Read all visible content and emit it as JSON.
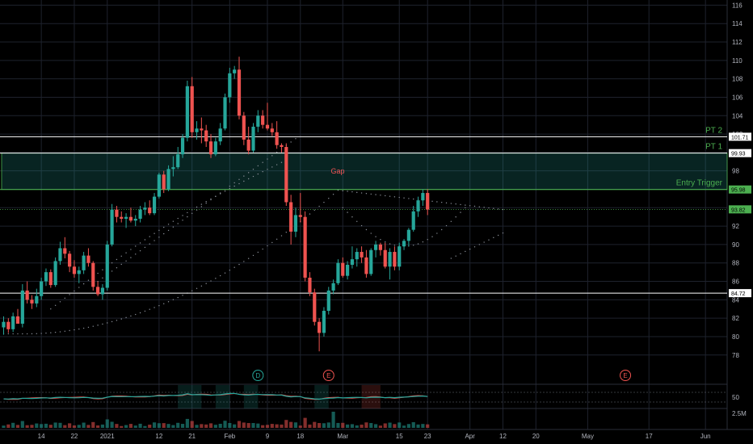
{
  "chart_data": {
    "type": "candlestick",
    "y_ticks": [
      116,
      114,
      112,
      110,
      108,
      106,
      104,
      102,
      100,
      98,
      96,
      94,
      92,
      90,
      88,
      86,
      84,
      82,
      80,
      78
    ],
    "ylim": [
      76.4,
      116.3
    ],
    "x_ticks": [
      {
        "label": "14",
        "i": 8
      },
      {
        "label": "22",
        "i": 15
      },
      {
        "label": "2021",
        "i": 22
      },
      {
        "label": "12",
        "i": 33
      },
      {
        "label": "21",
        "i": 40
      },
      {
        "label": "Feb",
        "i": 48
      },
      {
        "label": "9",
        "i": 56
      },
      {
        "label": "18",
        "i": 63
      },
      {
        "label": "Mar",
        "i": 72
      },
      {
        "label": "15",
        "i": 84
      },
      {
        "label": "23",
        "i": 90
      },
      {
        "label": "Apr",
        "i": 99
      },
      {
        "label": "12",
        "i": 106
      },
      {
        "label": "20",
        "i": 113
      },
      {
        "label": "May",
        "i": 124
      },
      {
        "label": "17",
        "i": 137
      },
      {
        "label": "Jun",
        "i": 149
      }
    ],
    "levels": [
      {
        "value": 101.71,
        "label": "PT 2",
        "tag": "101.71",
        "color": "#ffffff",
        "tag_bg": "#ffffff",
        "tag_fg": "#000000",
        "label_color": "#4caf50"
      },
      {
        "value": 99.93,
        "label": "PT 1",
        "tag": "99.93",
        "color": "#ffffff",
        "tag_bg": "#ffffff",
        "tag_fg": "#000000",
        "label_color": "#4caf50"
      },
      {
        "value": 95.98,
        "label": "Entry Trigger",
        "tag": "95.98",
        "color": "#4caf50",
        "tag_bg": "#4caf50",
        "tag_fg": "#000000",
        "label_color": "#4caf50"
      },
      {
        "value": 84.72,
        "label": "",
        "tag": "84.72",
        "color": "#ffffff",
        "tag_bg": "#ffffff",
        "tag_fg": "#000000",
        "label_color": "#ffffff"
      }
    ],
    "dotted_level": {
      "value": 93.82,
      "tag": "93.82",
      "color": "#4caf50"
    },
    "gap_zone": {
      "from": 95.98,
      "to": 99.93,
      "label": "Gap",
      "label_color": "#f05454"
    },
    "events": [
      {
        "label": "D",
        "i": 54,
        "color": "#26a69a"
      },
      {
        "label": "E",
        "i": 69,
        "color": "#ef5350"
      },
      {
        "label": "E",
        "i": 132,
        "color": "#ef5350"
      }
    ],
    "volume_tick": "2.5M",
    "oscillator_tick": "50",
    "colors": {
      "up": "#26a69a",
      "down": "#ef5350",
      "grid": "#1e222d",
      "axis_text": "#b2b5be"
    },
    "candles": [
      [
        81,
        82.2,
        80.2,
        81.6
      ],
      [
        81.6,
        82,
        80.4,
        80.8
      ],
      [
        80.8,
        82.6,
        80.5,
        82.2
      ],
      [
        82.2,
        83,
        81.5,
        81.4
      ],
      [
        81.4,
        85.7,
        81,
        85
      ],
      [
        85,
        86,
        83.6,
        84
      ],
      [
        84,
        84.5,
        83,
        83.6
      ],
      [
        83.6,
        85.2,
        83.2,
        84.4
      ],
      [
        84.4,
        86.4,
        84,
        86
      ],
      [
        86,
        87.4,
        85.5,
        87
      ],
      [
        87,
        87.3,
        85.3,
        85.6
      ],
      [
        85.6,
        88.6,
        85.4,
        88.2
      ],
      [
        88.2,
        90.3,
        87.8,
        89.6
      ],
      [
        89.6,
        90.8,
        88.5,
        89
      ],
      [
        89,
        89.3,
        87,
        87.6
      ],
      [
        87.6,
        88.3,
        86.4,
        86.8
      ],
      [
        86.8,
        87.6,
        85.8,
        87.2
      ],
      [
        87.2,
        89.2,
        86.8,
        88.8
      ],
      [
        88.8,
        89.6,
        87.6,
        88
      ],
      [
        88,
        88.2,
        85,
        85.4
      ],
      [
        85.4,
        86,
        84.4,
        84.6
      ],
      [
        84.6,
        85.7,
        84,
        85.3
      ],
      [
        85.3,
        90.4,
        85,
        90
      ],
      [
        90,
        94.4,
        89.8,
        93.8
      ],
      [
        93.8,
        94.2,
        92.4,
        93
      ],
      [
        93,
        93.6,
        92.4,
        92.8
      ],
      [
        92.8,
        93.4,
        91.8,
        93
      ],
      [
        93,
        94,
        92.4,
        92.6
      ],
      [
        92.6,
        93.2,
        92,
        92.8
      ],
      [
        92.8,
        94.2,
        92.4,
        93.8
      ],
      [
        93.8,
        94.6,
        93.2,
        94
      ],
      [
        94,
        94.8,
        93.2,
        93.4
      ],
      [
        93.4,
        95.6,
        93.2,
        95.2
      ],
      [
        95.2,
        97.8,
        95,
        97.6
      ],
      [
        97.6,
        98,
        95.6,
        96
      ],
      [
        96,
        98.6,
        95.8,
        98.2
      ],
      [
        98.2,
        99.6,
        97.4,
        98.4
      ],
      [
        98.4,
        100.6,
        98.2,
        99.8
      ],
      [
        99.8,
        102,
        99.4,
        101.6
      ],
      [
        101.6,
        107.8,
        101.2,
        107.2
      ],
      [
        107.2,
        108.2,
        101.6,
        102.2
      ],
      [
        102.2,
        103.4,
        101.4,
        102.6
      ],
      [
        102.6,
        103.8,
        101,
        102.4
      ],
      [
        102.4,
        103,
        100.6,
        101.2
      ],
      [
        101.2,
        102,
        99.4,
        99.8
      ],
      [
        99.8,
        101.6,
        99.6,
        101.2
      ],
      [
        101.2,
        103.2,
        100.8,
        102.6
      ],
      [
        102.6,
        106.4,
        102.4,
        106
      ],
      [
        106,
        109.2,
        105.4,
        108.6
      ],
      [
        108.6,
        109.4,
        108,
        109
      ],
      [
        109,
        110.4,
        103.6,
        104
      ],
      [
        104,
        104.4,
        100.8,
        101.4
      ],
      [
        101.4,
        102.8,
        99.8,
        100.2
      ],
      [
        100.2,
        103.2,
        100,
        102.8
      ],
      [
        102.8,
        104.6,
        102.2,
        104
      ],
      [
        104,
        104.6,
        102.6,
        103
      ],
      [
        103,
        105.4,
        102.4,
        102.6
      ],
      [
        102.6,
        103.2,
        101.8,
        102.2
      ],
      [
        102.2,
        103.4,
        100.4,
        100.8
      ],
      [
        100.8,
        101,
        100,
        100.6
      ],
      [
        100.6,
        101,
        94.2,
        94.6
      ],
      [
        94.6,
        95.4,
        90,
        91.4
      ],
      [
        91.4,
        94,
        90.8,
        93.2
      ],
      [
        93.2,
        95.6,
        92.4,
        93
      ],
      [
        93,
        93.6,
        86,
        86.4
      ],
      [
        86.4,
        87,
        84.4,
        84.8
      ],
      [
        84.8,
        85.2,
        81.2,
        81.6
      ],
      [
        81.6,
        82,
        78.4,
        80.4
      ],
      [
        80.4,
        83.2,
        80,
        82.8
      ],
      [
        82.8,
        85.4,
        82.4,
        85
      ],
      [
        85,
        86.2,
        84.6,
        85.8
      ],
      [
        85.8,
        88.4,
        85.6,
        88
      ],
      [
        88,
        88.6,
        86.4,
        86.6
      ],
      [
        86.6,
        88.2,
        86.2,
        87.8
      ],
      [
        87.8,
        89.8,
        87.4,
        88.4
      ],
      [
        88.4,
        89.6,
        87.6,
        89.2
      ],
      [
        89.2,
        89.8,
        88,
        88.6
      ],
      [
        88.6,
        89.4,
        86.4,
        86.8
      ],
      [
        86.8,
        89.6,
        86.6,
        89.4
      ],
      [
        89.4,
        90.4,
        88.6,
        90
      ],
      [
        90,
        90.2,
        88.8,
        89.4
      ],
      [
        89.4,
        90.2,
        87.4,
        87.6
      ],
      [
        87.6,
        89.6,
        86.2,
        89.2
      ],
      [
        89.2,
        89.8,
        87.2,
        87.6
      ],
      [
        87.6,
        90.2,
        87.2,
        89.8
      ],
      [
        89.8,
        90.6,
        89.4,
        90.4
      ],
      [
        90.4,
        91.8,
        89.8,
        91.6
      ],
      [
        91.6,
        94.2,
        91.4,
        93.6
      ],
      [
        93.6,
        95.2,
        93,
        94.8
      ],
      [
        94.8,
        96,
        94.2,
        95.6
      ],
      [
        95.6,
        96,
        93.2,
        93.8
      ]
    ]
  }
}
